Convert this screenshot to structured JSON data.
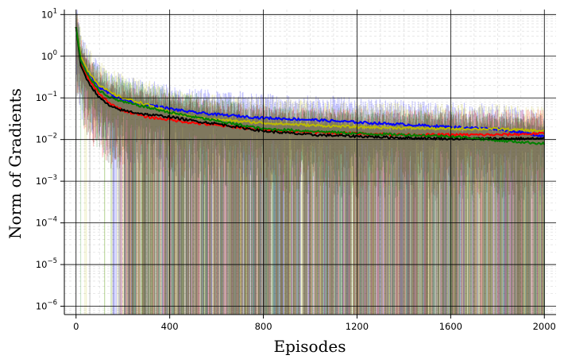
{
  "chart_data": {
    "type": "line",
    "xlabel": "Episodes",
    "ylabel": "Norm of Gradients",
    "xlim": [
      -50,
      2050
    ],
    "ylim_log10": [
      -6.2,
      1.12
    ],
    "yscale": "log",
    "grid": true,
    "legend": "none",
    "x_ticks": [
      {
        "value": 0,
        "label": "0"
      },
      {
        "value": 400,
        "label": "400"
      },
      {
        "value": 800,
        "label": "800"
      },
      {
        "value": 1200,
        "label": "1200"
      },
      {
        "value": 1600,
        "label": "1600"
      },
      {
        "value": 2000,
        "label": "2000"
      }
    ],
    "y_ticks": [
      {
        "exp": 1,
        "base": "10",
        "sup": "1"
      },
      {
        "exp": 0,
        "base": "10",
        "sup": "0"
      },
      {
        "exp": -1,
        "base": "10",
        "sup": "−1"
      },
      {
        "exp": -2,
        "base": "10",
        "sup": "−2"
      },
      {
        "exp": -3,
        "base": "10",
        "sup": "−3"
      },
      {
        "exp": -4,
        "base": "10",
        "sup": "−4"
      },
      {
        "exp": -5,
        "base": "10",
        "sup": "−5"
      },
      {
        "exp": -6,
        "base": "10",
        "sup": "−6"
      }
    ],
    "x": [
      0,
      20,
      50,
      100,
      150,
      200,
      300,
      400,
      500,
      600,
      800,
      1000,
      1200,
      1400,
      1600,
      1800,
      2000
    ],
    "series": [
      {
        "color": "#0000ff",
        "values": [
          5.0,
          0.9,
          0.4,
          0.18,
          0.12,
          0.09,
          0.07,
          0.055,
          0.045,
          0.04,
          0.033,
          0.03,
          0.026,
          0.023,
          0.02,
          0.018,
          0.012
        ]
      },
      {
        "color": "#bbbb00",
        "values": [
          5.0,
          1.0,
          0.45,
          0.2,
          0.13,
          0.1,
          0.07,
          0.045,
          0.035,
          0.03,
          0.025,
          0.022,
          0.02,
          0.019,
          0.018,
          0.018,
          0.016
        ]
      },
      {
        "color": "#ff0000",
        "values": [
          5.0,
          0.7,
          0.3,
          0.12,
          0.07,
          0.05,
          0.035,
          0.03,
          0.025,
          0.022,
          0.017,
          0.015,
          0.014,
          0.013,
          0.013,
          0.013,
          0.014
        ]
      },
      {
        "color": "#000000",
        "values": [
          5.0,
          0.6,
          0.25,
          0.1,
          0.06,
          0.05,
          0.04,
          0.035,
          0.028,
          0.024,
          0.016,
          0.013,
          0.012,
          0.011,
          0.0105,
          0.0105,
          0.0105
        ]
      },
      {
        "color": "#008000",
        "values": [
          5.0,
          0.8,
          0.35,
          0.15,
          0.1,
          0.08,
          0.06,
          0.045,
          0.035,
          0.028,
          0.018,
          0.016,
          0.014,
          0.013,
          0.012,
          0.0095,
          0.008
        ]
      }
    ]
  }
}
